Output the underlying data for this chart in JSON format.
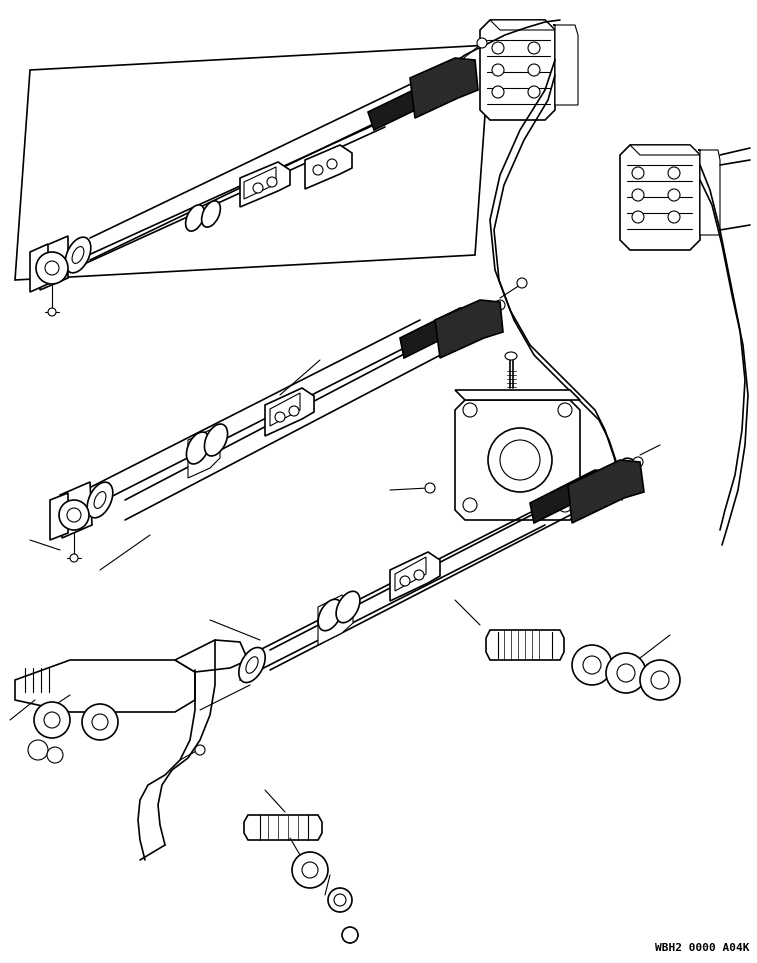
{
  "watermark": "WBH2 0000 A04K",
  "background_color": "#ffffff",
  "line_color": "#000000",
  "figure_width": 7.57,
  "figure_height": 9.63,
  "dpi": 100,
  "lw_thin": 0.8,
  "lw_med": 1.2,
  "lw_thick": 1.8
}
